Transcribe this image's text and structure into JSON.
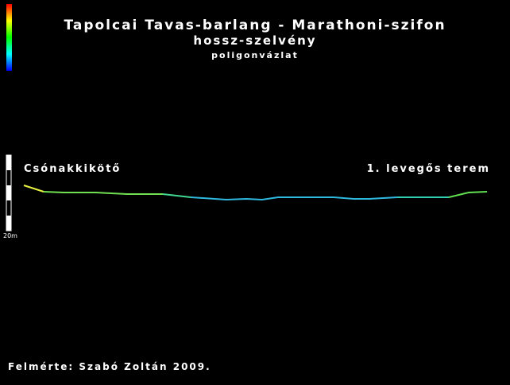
{
  "header": {
    "title": "Tapolcai Tavas-barlang - Marathoni-szifon",
    "subtitle": "hossz-szelvény",
    "note": "poligonvázlat"
  },
  "scale": {
    "label": "20m"
  },
  "stations": {
    "start": "Csónakkikötő",
    "end": "1. levegős terem"
  },
  "footer": {
    "credit": "Felmérte: Szabó Zoltán 2009."
  }
}
